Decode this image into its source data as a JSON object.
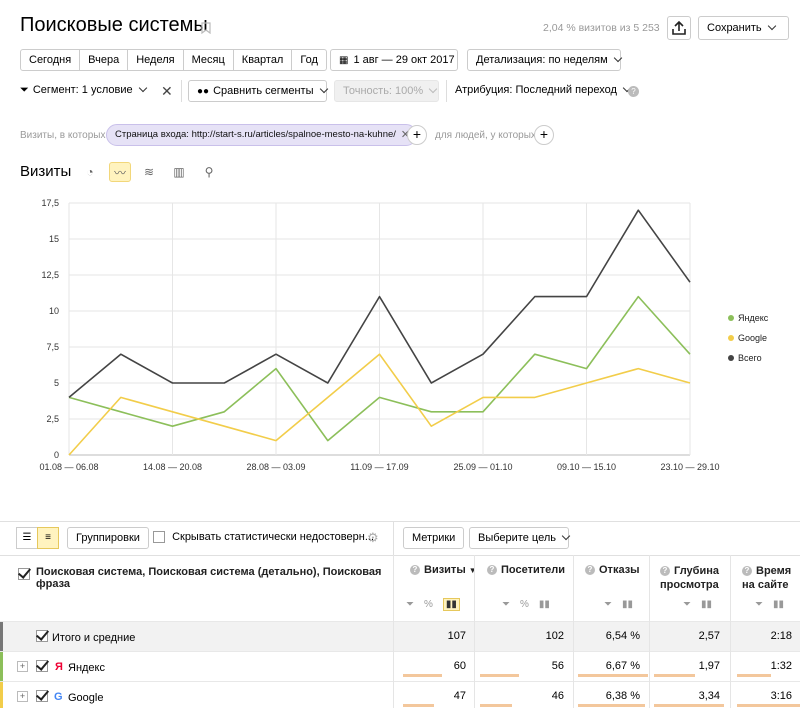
{
  "header": {
    "title": "Поисковые системы",
    "visits_share": "2,04 % визитов из 5 253",
    "save_label": "Сохранить"
  },
  "periods": [
    "Сегодня",
    "Вчера",
    "Неделя",
    "Месяц",
    "Квартал",
    "Год"
  ],
  "date_range": "1 авг — 29 окт 2017",
  "detail": "Детализация: по неделям",
  "filters": {
    "segment": "Сегмент: 1 условие",
    "compare": "Сравнить сегменты",
    "accuracy": "Точность: 100%",
    "attribution": "Атрибуция: Последний переход"
  },
  "segment_row": {
    "prefix": "Визиты, в которых",
    "chip": "Страница входа: http://start-s.ru/articles/spalnoe-mesto-na-kuhne/",
    "suffix": "для людей, у которых"
  },
  "chart_section_title": "Визиты",
  "colors": {
    "yandex": "#8cbf5a",
    "google": "#f2cd4a",
    "total": "#444444",
    "bar": "#f3c79c",
    "chip": "#e6e2f6"
  },
  "chart_data": {
    "type": "line",
    "x": [
      "01.08 — 06.08",
      "07.08 — 13.08",
      "14.08 — 20.08",
      "21.08 — 27.08",
      "28.08 — 03.09",
      "04.09 — 10.09",
      "11.09 — 17.09",
      "18.09 — 24.09",
      "25.09 — 01.10",
      "02.10 — 08.10",
      "09.10 — 15.10",
      "16.10 — 22.10",
      "23.10 — 29.10"
    ],
    "x_tick_labels": [
      "01.08 — 06.08",
      "14.08 — 20.08",
      "28.08 — 03.09",
      "11.09 — 17.09",
      "25.09 — 01.10",
      "09.10 — 15.10",
      "23.10 — 29.10"
    ],
    "y_tick_labels": [
      "0",
      "2,5",
      "5",
      "7,5",
      "10",
      "12,5",
      "15",
      "17,5"
    ],
    "ylim": [
      0,
      17.5
    ],
    "grid": true,
    "legend_position": "right",
    "series": [
      {
        "name": "Яндекс",
        "color": "#8cbf5a",
        "values": [
          4,
          3,
          2,
          3,
          6,
          1,
          4,
          3,
          3,
          7,
          6,
          11,
          7
        ]
      },
      {
        "name": "Google",
        "color": "#f2cd4a",
        "values": [
          0,
          4,
          3,
          2,
          1,
          4,
          7,
          2,
          4,
          4,
          5,
          6,
          5
        ]
      },
      {
        "name": "Всего",
        "color": "#444444",
        "values": [
          4,
          7,
          5,
          5,
          7,
          5,
          11,
          5,
          7,
          11,
          11,
          17,
          12
        ]
      }
    ]
  },
  "table": {
    "groupings_label": "Группировки",
    "hide_label": "Скрывать статистически недостоверн...",
    "metrics_label": "Метрики",
    "goal_label": "Выберите цель",
    "dimension_header": "Поисковая система, Поисковая система (детально), Поисковая фраза",
    "columns": [
      {
        "label": "Визиты",
        "sort": "▼"
      },
      {
        "label": "Посетители"
      },
      {
        "label": "Отказы"
      },
      {
        "label": "Глубина просмотра"
      },
      {
        "label": "Время на сайте"
      }
    ],
    "rows": [
      {
        "name": "Итого и средние",
        "values": [
          "107",
          "102",
          "6,54 %",
          "2,57",
          "2:18"
        ],
        "bars": []
      },
      {
        "name": "Яндекс",
        "icon": "Я",
        "values": [
          "60",
          "56",
          "6,67 %",
          "1,97",
          "1:32"
        ],
        "bars": [
          0.56,
          0.55,
          1.0,
          0.59,
          0.48
        ]
      },
      {
        "name": "Google",
        "icon": "G",
        "values": [
          "47",
          "46",
          "6,38 %",
          "3,34",
          "3:16"
        ],
        "bars": [
          0.44,
          0.45,
          0.96,
          1.0,
          1.0
        ]
      }
    ]
  }
}
